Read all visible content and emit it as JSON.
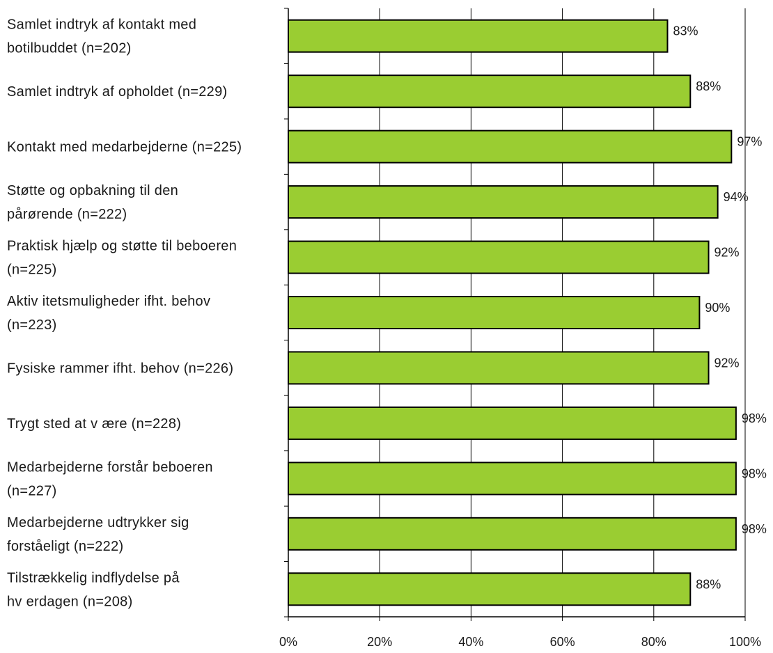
{
  "chart_data": {
    "type": "bar",
    "orientation": "horizontal",
    "categories": [
      [
        "Samlet indtryk af kontakt med",
        "botilbuddet (n=202)"
      ],
      [
        "Samlet indtryk af opholdet (n=229)"
      ],
      [
        "Kontakt med medarbejderne (n=225)"
      ],
      [
        "Støtte og opbakning til den",
        "pårørende (n=222)"
      ],
      [
        "Praktisk hjælp og støtte til beboeren",
        "(n=225)"
      ],
      [
        "Aktiv itetsmuligheder ifht. behov",
        "(n=223)"
      ],
      [
        "Fysiske rammer ifht. behov  (n=226)"
      ],
      [
        "Trygt sted at v ære (n=228)"
      ],
      [
        "Medarbejderne forstår beboeren",
        "(n=227)"
      ],
      [
        "Medarbejderne udtrykker sig",
        "forståeligt (n=222)"
      ],
      [
        "Tilstrækkelig indflydelse på",
        "hv erdagen (n=208)"
      ]
    ],
    "values": [
      83,
      88,
      97,
      94,
      92,
      90,
      92,
      98,
      98,
      98,
      88
    ],
    "value_labels": [
      "83%",
      "88%",
      "97%",
      "94%",
      "92%",
      "90%",
      "92%",
      "98%",
      "98%",
      "98%",
      "88%"
    ],
    "xlim": [
      0,
      100
    ],
    "xticks": [
      0,
      20,
      40,
      60,
      80,
      100
    ],
    "xtick_labels": [
      "0%",
      "20%",
      "40%",
      "60%",
      "80%",
      "100%"
    ],
    "grid": "vertical",
    "bar_color": "#9acd32",
    "bar_edge_color": "#000000",
    "title": "",
    "xlabel": "",
    "ylabel": ""
  }
}
